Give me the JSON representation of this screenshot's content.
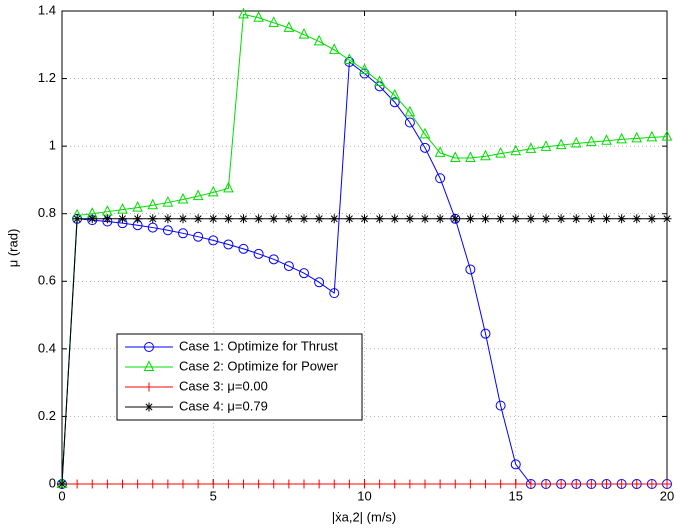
{
  "chart_data": {
    "type": "line",
    "x_label": "|ẋa,2| (m/s)",
    "y_label": "μ (rad)",
    "x": [
      0,
      0.5,
      1,
      1.5,
      2,
      2.5,
      3,
      3.5,
      4,
      4.5,
      5,
      5.5,
      6,
      6.5,
      7,
      7.5,
      8,
      8.5,
      9,
      9.5,
      10,
      10.5,
      11,
      11.5,
      12,
      12.5,
      13,
      13.5,
      14,
      14.5,
      15,
      15.5,
      16,
      16.5,
      17,
      17.5,
      18,
      18.5,
      19,
      19.5,
      20
    ],
    "series": [
      {
        "name": "Case 1: Optimize for Thrust",
        "color": "#0000ff",
        "marker": "circle",
        "values": [
          0,
          0.785,
          0.781,
          0.777,
          0.772,
          0.766,
          0.759,
          0.751,
          0.742,
          0.732,
          0.721,
          0.709,
          0.696,
          0.681,
          0.665,
          0.645,
          0.624,
          0.597,
          0.565,
          1.249,
          1.215,
          1.177,
          1.13,
          1.07,
          0.995,
          0.905,
          0.785,
          0.635,
          0.445,
          0.232,
          0.058,
          0,
          0,
          0,
          0,
          0,
          0,
          0,
          0,
          0,
          0
        ]
      },
      {
        "name": "Case 2: Optimize for Power",
        "color": "#00dd00",
        "marker": "triangle",
        "values": [
          0,
          0.795,
          0.8,
          0.806,
          0.812,
          0.818,
          0.825,
          0.833,
          0.842,
          0.852,
          0.863,
          0.875,
          1.39,
          1.38,
          1.365,
          1.35,
          1.33,
          1.31,
          1.285,
          1.255,
          1.225,
          1.19,
          1.15,
          1.1,
          1.035,
          0.98,
          0.965,
          0.965,
          0.97,
          0.978,
          0.985,
          0.992,
          0.998,
          1.003,
          1.008,
          1.012,
          1.016,
          1.02,
          1.023,
          1.026,
          1.028
        ]
      },
      {
        "name": "Case 3: μ=0.00",
        "color": "#ff0000",
        "marker": "plus",
        "values": [
          0,
          0,
          0,
          0,
          0,
          0,
          0,
          0,
          0,
          0,
          0,
          0,
          0,
          0,
          0,
          0,
          0,
          0,
          0,
          0,
          0,
          0,
          0,
          0,
          0,
          0,
          0,
          0,
          0,
          0,
          0,
          0,
          0,
          0,
          0,
          0,
          0,
          0,
          0,
          0,
          0
        ]
      },
      {
        "name": "Case 4: μ=0.79",
        "color": "#000000",
        "marker": "star",
        "values": [
          0,
          0.785,
          0.785,
          0.785,
          0.785,
          0.785,
          0.785,
          0.785,
          0.785,
          0.785,
          0.785,
          0.785,
          0.785,
          0.785,
          0.785,
          0.785,
          0.785,
          0.785,
          0.785,
          0.785,
          0.785,
          0.785,
          0.785,
          0.785,
          0.785,
          0.785,
          0.785,
          0.785,
          0.785,
          0.785,
          0.785,
          0.785,
          0.785,
          0.785,
          0.785,
          0.785,
          0.785,
          0.785,
          0.785,
          0.785,
          0.785
        ]
      }
    ],
    "xlim": [
      0,
      20
    ],
    "xticks": [
      0,
      5,
      10,
      15,
      20
    ],
    "ylim": [
      0,
      1.4
    ],
    "yticks": [
      0,
      0.2,
      0.4,
      0.6,
      0.8,
      1,
      1.2,
      1.4
    ],
    "grid": true,
    "legend": "lower-left"
  }
}
